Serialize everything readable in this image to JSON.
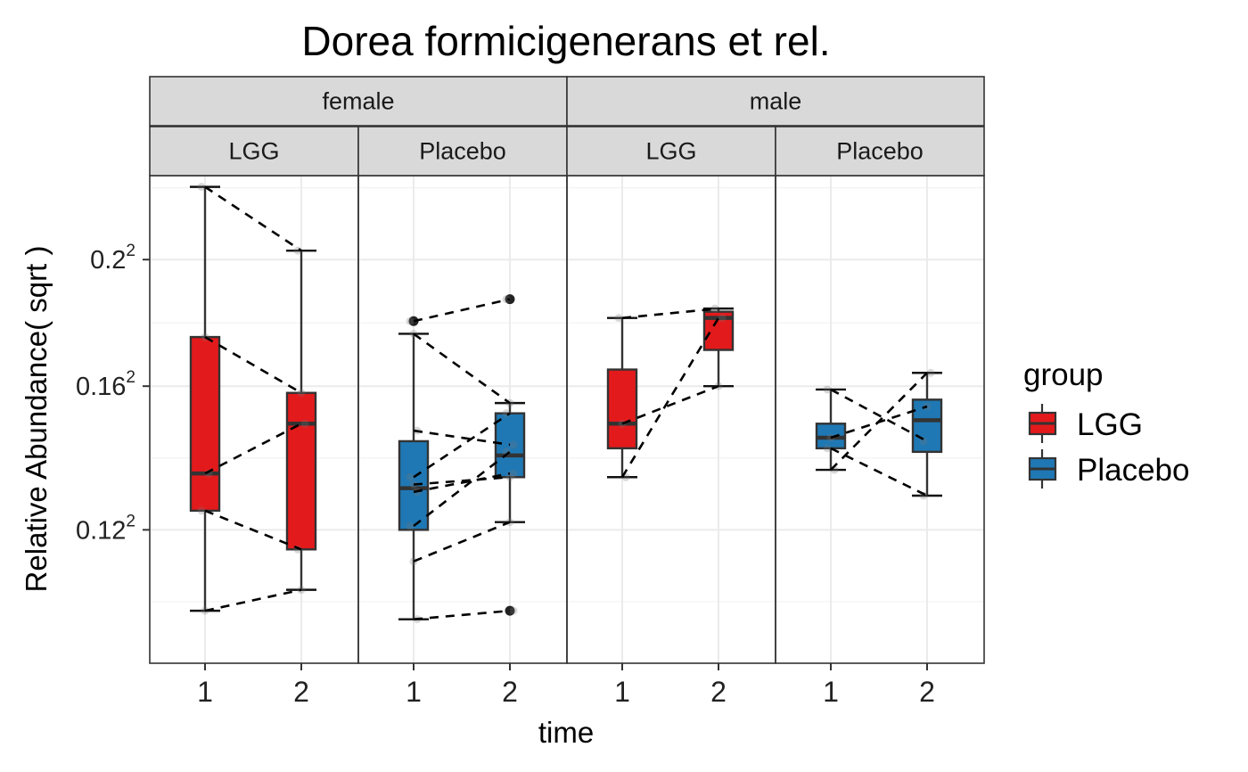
{
  "chart_data": {
    "type": "box",
    "title": "Dorea formicigenerans et rel.",
    "xlabel": "time",
    "ylabel": "Relative Abundance( sqrt )",
    "y_scale": "sqrt",
    "y_tick_base": [
      "0.12",
      "0.16",
      "0.2"
    ],
    "y_tick_values": [
      0.12,
      0.16,
      0.2
    ],
    "y_tick_exponent": "2",
    "ylim": [
      0.088,
      0.229
    ],
    "x_categories": [
      "1",
      "2"
    ],
    "facet_rows": [
      "female",
      "male"
    ],
    "facet_cols": [
      "LGG",
      "Placebo"
    ],
    "grid": true,
    "legend": {
      "title": "group",
      "placement": "right",
      "entries": [
        {
          "label": "LGG",
          "color": "#E31A1C"
        },
        {
          "label": "Placebo",
          "color": "#1F78B4"
        }
      ]
    },
    "panels": [
      {
        "sex": "female",
        "group": "LGG",
        "color": "#E31A1C",
        "boxes": [
          {
            "time": "1",
            "min": 0.1,
            "q1": 0.125,
            "median": 0.135,
            "q3": 0.175,
            "max": 0.225,
            "outliers": []
          },
          {
            "time": "2",
            "min": 0.105,
            "q1": 0.115,
            "median": 0.149,
            "q3": 0.158,
            "max": 0.203,
            "outliers": []
          }
        ],
        "subjects": [
          [
            0.225,
            0.203
          ],
          [
            0.175,
            0.158
          ],
          [
            0.135,
            0.149
          ],
          [
            0.125,
            0.115
          ],
          [
            0.1,
            0.105
          ]
        ]
      },
      {
        "sex": "female",
        "group": "Placebo",
        "color": "#1F78B4",
        "boxes": [
          {
            "time": "1",
            "min": 0.098,
            "q1": 0.12,
            "median": 0.131,
            "q3": 0.144,
            "max": 0.176,
            "outliers": [
              0.18
            ]
          },
          {
            "time": "2",
            "min": 0.122,
            "q1": 0.134,
            "median": 0.14,
            "q3": 0.152,
            "max": 0.155,
            "outliers": [
              0.187,
              0.1
            ]
          }
        ],
        "subjects": [
          [
            0.18,
            0.187
          ],
          [
            0.176,
            0.155
          ],
          [
            0.147,
            0.143
          ],
          [
            0.134,
            0.152
          ],
          [
            0.132,
            0.134
          ],
          [
            0.13,
            0.135
          ],
          [
            0.121,
            0.141
          ],
          [
            0.112,
            0.122
          ],
          [
            0.098,
            0.1
          ]
        ]
      },
      {
        "sex": "male",
        "group": "LGG",
        "color": "#E31A1C",
        "boxes": [
          {
            "time": "1",
            "min": 0.134,
            "q1": 0.142,
            "median": 0.149,
            "q3": 0.165,
            "max": 0.181,
            "outliers": []
          },
          {
            "time": "2",
            "min": 0.16,
            "q1": 0.171,
            "median": 0.181,
            "q3": 0.183,
            "max": 0.184,
            "outliers": []
          }
        ],
        "subjects": [
          [
            0.181,
            0.184
          ],
          [
            0.149,
            0.16
          ],
          [
            0.134,
            0.181
          ]
        ]
      },
      {
        "sex": "male",
        "group": "Placebo",
        "color": "#1F78B4",
        "boxes": [
          {
            "time": "1",
            "min": 0.136,
            "q1": 0.142,
            "median": 0.145,
            "q3": 0.149,
            "max": 0.159,
            "outliers": []
          },
          {
            "time": "2",
            "min": 0.129,
            "q1": 0.141,
            "median": 0.15,
            "q3": 0.156,
            "max": 0.164,
            "outliers": []
          }
        ],
        "subjects": [
          [
            0.159,
            0.144
          ],
          [
            0.145,
            0.154
          ],
          [
            0.136,
            0.164
          ],
          [
            0.142,
            0.129
          ]
        ]
      }
    ]
  }
}
